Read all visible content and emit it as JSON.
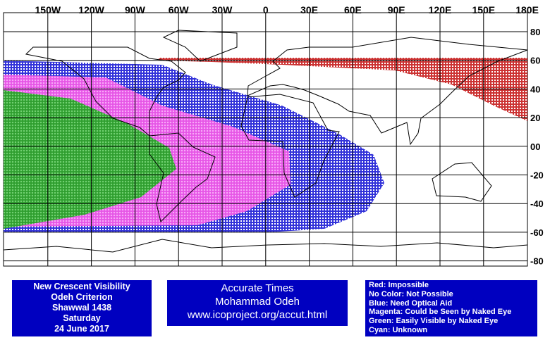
{
  "map": {
    "lon_labels": [
      "150W",
      "120W",
      "90W",
      "60W",
      "30W",
      "0",
      "30E",
      "60E",
      "90E",
      "120E",
      "150E",
      "180E"
    ],
    "lat_labels": [
      "80",
      "60",
      "40",
      "20",
      "00",
      "-20",
      "-40",
      "-60",
      "-80"
    ]
  },
  "panels": {
    "title_box": {
      "lines": [
        "New Crescent Visibility",
        "Odeh Criterion",
        "Shawwal 1438",
        "Saturday",
        "24 June 2017"
      ]
    },
    "credit_box": {
      "lines": [
        "Accurate Times",
        "Mohammad Odeh",
        "www.icoproject.org/accut.html"
      ]
    },
    "legend": {
      "lines": [
        "Red: Impossible",
        "No Color: Not Possible",
        "Blue: Need Optical Aid",
        "Magenta: Could be Seen by Naked Eye",
        "Green: Easily Visible by Naked Eye",
        "Cyan: Unknown"
      ]
    }
  }
}
